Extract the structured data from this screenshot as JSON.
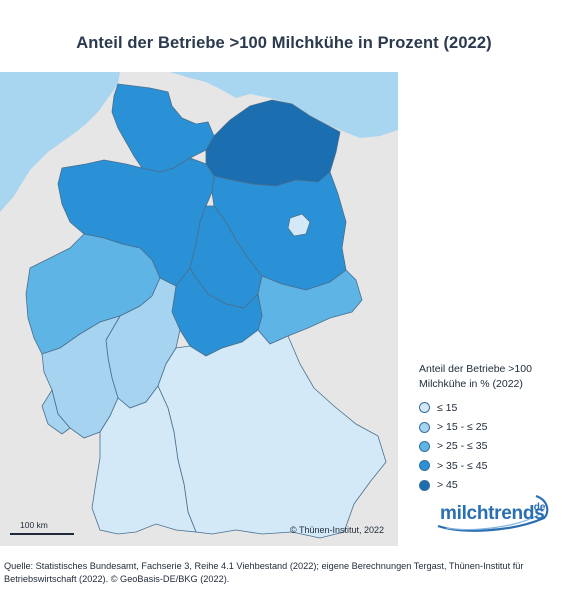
{
  "title": "Anteil der Betriebe >100 Milchkühe in Prozent (2022)",
  "legend": {
    "title_line1": "Anteil der Betriebe >100",
    "title_line2": "Milchkühe in % (2022)",
    "items": [
      {
        "label": "≤ 15",
        "color": "#d3e9f7"
      },
      {
        "label": "> 15 - ≤ 25",
        "color": "#a5d3f0"
      },
      {
        "label": "> 25 - ≤ 35",
        "color": "#5fb4e6"
      },
      {
        "label": "> 35 - ≤ 45",
        "color": "#2a91d6"
      },
      {
        "label": "> 45",
        "color": "#1b6fb0"
      }
    ]
  },
  "scale_label": "100 km",
  "copyright": "© Thünen-Institut, 2022",
  "logo": {
    "main": "milchtrends",
    "suffix": ".de"
  },
  "source": "Quelle: Statistisches Bundesamt, Fachserie 3, Reihe 4.1 Viehbestand (2022); eigene Berechnungen Tergast, Thünen-Institut für Betriebswirtschaft (2022). © GeoBasis-DE/BKG (2022).",
  "colors": {
    "sea": "#a8d5f0",
    "neighbor_land": "#e6e6e6",
    "border": "#4a6f8e"
  }
}
